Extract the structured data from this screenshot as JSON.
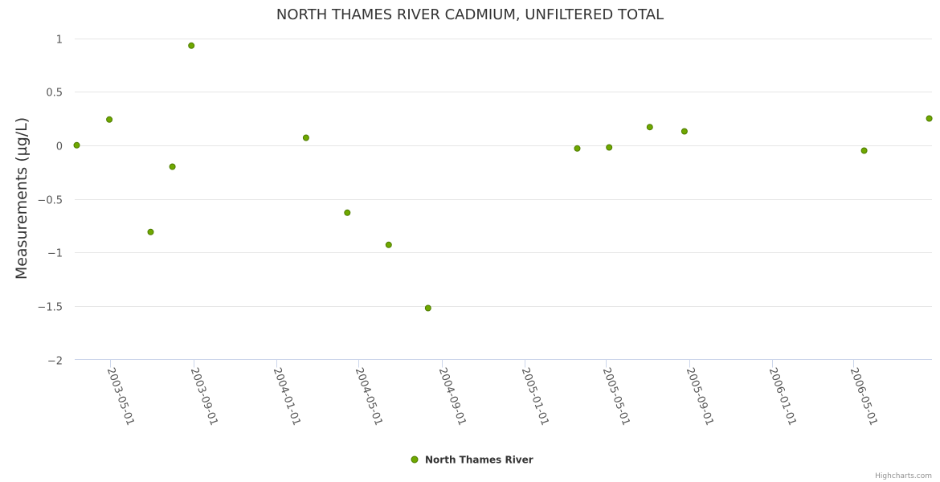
{
  "chart_data": {
    "type": "scatter",
    "title": "NORTH THAMES RIVER CADMIUM, UNFILTERED TOTAL",
    "xlabel": "",
    "ylabel": "Measurements (µg/L)",
    "ylim": [
      -2,
      1
    ],
    "yticks": [
      1,
      0.5,
      0,
      -0.5,
      -1,
      -1.5,
      -2
    ],
    "ytick_labels": [
      "1",
      "0.5",
      "0",
      "−0.5",
      "−1",
      "−1.5",
      "−2"
    ],
    "xlim": [
      "2003-03-10",
      "2006-08-25"
    ],
    "xticks": [
      "2003-05-01",
      "2003-09-01",
      "2004-01-01",
      "2004-05-01",
      "2004-09-01",
      "2005-01-01",
      "2005-05-01",
      "2005-09-01",
      "2006-01-01",
      "2006-05-01"
    ],
    "grid": true,
    "series": [
      {
        "name": "North Thames River",
        "color": "#6fa800",
        "stroke": "#4d7a00",
        "x": [
          "2003-03-13",
          "2003-04-30",
          "2003-06-30",
          "2003-08-01",
          "2003-08-29",
          "2004-02-14",
          "2004-04-15",
          "2004-06-15",
          "2004-08-12",
          "2005-03-20",
          "2005-05-06",
          "2005-07-05",
          "2005-08-25",
          "2006-05-17",
          "2006-08-21"
        ],
        "y": [
          0.0,
          0.24,
          -0.81,
          -0.2,
          0.93,
          0.07,
          -0.63,
          -0.93,
          -1.52,
          -0.03,
          -0.02,
          0.17,
          0.13,
          -0.05,
          0.25
        ]
      }
    ],
    "legend": "bottom-center"
  },
  "credit": "Highcharts.com"
}
